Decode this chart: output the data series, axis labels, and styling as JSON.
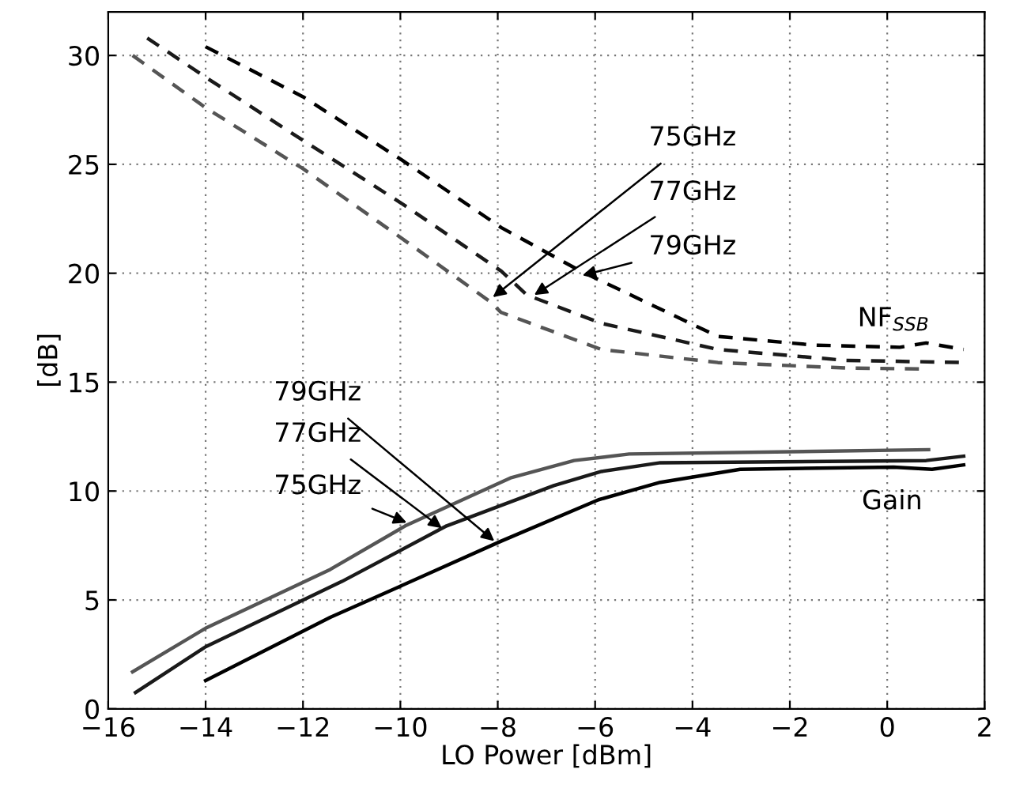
{
  "chart_data": {
    "type": "line",
    "xlabel": "LO Power [dBm]",
    "ylabel": "[dB]",
    "xlim": [
      -16,
      2
    ],
    "ylim": [
      0,
      32
    ],
    "xticks": [
      {
        "value": -16,
        "label": "−16"
      },
      {
        "value": -14,
        "label": "−14"
      },
      {
        "value": -12,
        "label": "−12"
      },
      {
        "value": -10,
        "label": "−10"
      },
      {
        "value": -8,
        "label": "−8"
      },
      {
        "value": -6,
        "label": "−6"
      },
      {
        "value": -4,
        "label": "−4"
      },
      {
        "value": -2,
        "label": "−2"
      },
      0,
      2
    ],
    "yticks": [
      0,
      5,
      10,
      15,
      20,
      25,
      30
    ],
    "grid": true,
    "marker": "none",
    "series": [
      {
        "color": "#555555",
        "line_style": "solid",
        "x": [
          -15.5,
          -14,
          -11.44,
          -9.9,
          -7.74,
          -6.43,
          -5.3,
          0.85
        ],
        "values": [
          1.7,
          3.7,
          6.4,
          8.4,
          10.6,
          11.4,
          11.7,
          11.9
        ]
      },
      {
        "color": "#1a1a1a",
        "line_style": "solid",
        "x": [
          -15.44,
          -14,
          -11.2,
          -9.05,
          -6.85,
          -5.87,
          -4.66,
          0.8,
          1.57
        ],
        "values": [
          0.75,
          2.85,
          5.85,
          8.4,
          10.25,
          10.9,
          11.3,
          11.4,
          11.6
        ]
      },
      {
        "color": "#000000",
        "line_style": "solid",
        "x": [
          -14,
          -11.44,
          -10.03,
          -7.93,
          -5.93,
          -4.66,
          -3.02,
          0.13,
          0.92,
          1.57
        ],
        "values": [
          1.3,
          4.2,
          5.6,
          7.7,
          9.6,
          10.4,
          11.0,
          11.1,
          11.0,
          11.2
        ]
      },
      {
        "color": "#555555",
        "line_style": "dashed",
        "x": [
          -15.5,
          -14,
          -12,
          -9.97,
          -8.16,
          -7.93,
          -5.87,
          -3.48,
          -0.85,
          0.85
        ],
        "values": [
          30.0,
          27.6,
          24.8,
          21.6,
          18.7,
          18.2,
          16.5,
          15.9,
          15.65,
          15.6
        ]
      },
      {
        "color": "#1a1a1a",
        "line_style": "dashed",
        "x": [
          -15.2,
          -14,
          -12,
          -9.97,
          -7.93,
          -7.4,
          -5.87,
          -3.48,
          -0.85,
          1.57
        ],
        "values": [
          30.8,
          29.0,
          26.1,
          23.2,
          20.1,
          19.0,
          17.7,
          16.5,
          16.0,
          15.9
        ]
      },
      {
        "color": "#000000",
        "line_style": "dashed",
        "x": [
          -14,
          -12,
          -9.97,
          -7.93,
          -6.3,
          -3.48,
          -1.5,
          0.26,
          0.8,
          1.57
        ],
        "values": [
          30.4,
          28.1,
          25.2,
          22.1,
          20.1,
          17.1,
          16.7,
          16.6,
          16.8,
          16.5
        ]
      }
    ],
    "annotations": [
      {
        "text": "75GHz",
        "x": -8.1,
        "y": 18.9
      },
      {
        "text": "77GHz",
        "x": -7.25,
        "y": 19.0
      },
      {
        "text": "79GHz",
        "x": -6.26,
        "y": 19.9
      },
      {
        "text": "79GHz",
        "x": -8.07,
        "y": 7.7
      },
      {
        "text": "77GHz",
        "x": -9.15,
        "y": 8.3
      },
      {
        "text": "75GHz",
        "x": -9.87,
        "y": 8.55
      },
      "NF$_{SSB}$",
      "Gain"
    ]
  }
}
